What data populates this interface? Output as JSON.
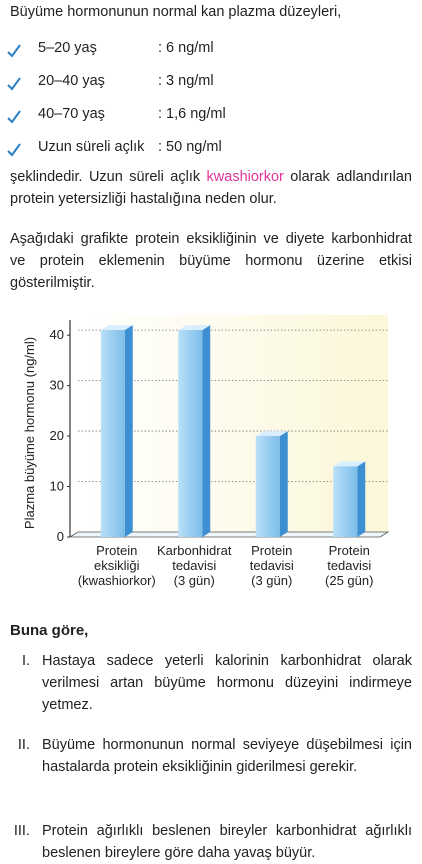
{
  "intro": {
    "title": "Büyüme hormonunun normal kan plazma düzeyleri,",
    "items": [
      {
        "label": "5–20 yaş",
        "value": ": 6 ng/ml"
      },
      {
        "label": "20–40 yaş",
        "value": ": 3 ng/ml"
      },
      {
        "label": "40–70 yaş",
        "value": ": 1,6 ng/ml"
      },
      {
        "label": "Uzun süreli açlık",
        "value": ": 50 ng/ml"
      }
    ]
  },
  "paragraph1": {
    "before": "şeklindedir. Uzun süreli açlık ",
    "highlight": "kwashiorkor",
    "after": " olarak adlandırılan protein yetersizliği hastalığına neden olur."
  },
  "paragraph2": "Aşağıdaki grafikte protein eksikliğinin ve diyete karbonhidrat ve protein eklemenin büyüme hormonu üzerine etkisi gösterilmiştir.",
  "chart_data": {
    "type": "bar",
    "y_label": "Plazma büyüme hormonu (ng/ml)",
    "categories": [
      [
        "Protein",
        "eksikliği",
        "(kwashiorkor)"
      ],
      [
        "Karbonhidrat",
        "tedavisi",
        "(3 gün)"
      ],
      [
        "Protein",
        "tedavisi",
        "(3 gün)"
      ],
      [
        "Protein",
        "tedavisi",
        "(25 gün)"
      ]
    ],
    "values": [
      41,
      41,
      20,
      14
    ],
    "color": "#8cc8f0",
    "ylim": [
      0,
      43
    ],
    "yticks": [
      0,
      10,
      20,
      30,
      40
    ],
    "grid": true
  },
  "question": {
    "lead": "Buna göre,",
    "statements": [
      {
        "numeral": "I.",
        "text": "Hastaya sadece yeterli kalorinin karbonhidrat olarak verilmesi artan büyüme hormonu düzeyini indirmeye yetmez."
      },
      {
        "numeral": "II.",
        "text": "Büyüme hormonunun normal seviyeye düşebilmesi için hastalarda protein eksikliğinin giderilmesi gerekir."
      },
      {
        "numeral": "III.",
        "text": "Protein ağırlıklı beslenen bireyler karbonhidrat ağırlıklı beslenen bireylere göre daha yavaş büyür."
      }
    ]
  }
}
